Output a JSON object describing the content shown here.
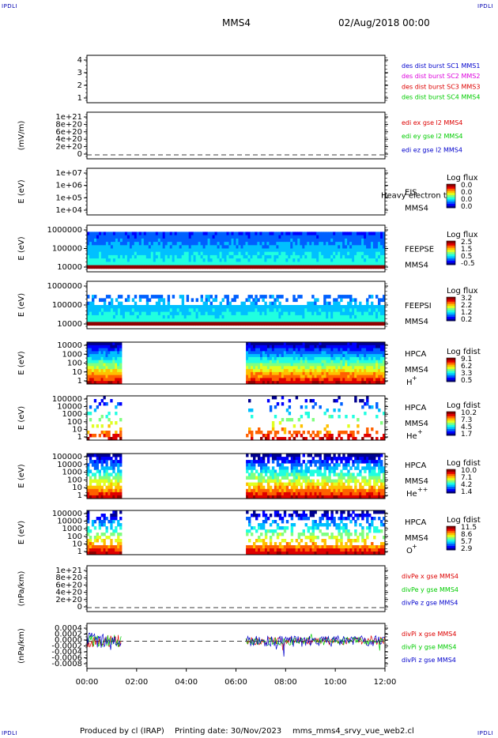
{
  "corners": {
    "tl": "IPDLI",
    "tr": "IPDLI",
    "bl": "IPDLI",
    "br": "IPDLI"
  },
  "header": {
    "spacecraft": "MMS4",
    "datetime": "02/Aug/2018 00:00"
  },
  "footer": {
    "produced_by": "Produced by cl (IRAP)",
    "printing_date": "Printing date: 30/Nov/2023",
    "file": "mms_mms4_srvy_vue_web2.cl"
  },
  "colors": {
    "red": "#dd0000",
    "green": "#00cc00",
    "blue": "#0000cc",
    "magenta": "#dd00dd"
  },
  "chart_data": [
    {
      "type": "line",
      "ylabel": "",
      "yticks": [
        "1",
        "2",
        "3",
        "4"
      ],
      "legend": [
        {
          "label": "des dist burst SC1 MMS1",
          "color": "#0000cc"
        },
        {
          "label": "des dist burst SC2 MMS2",
          "color": "#dd00dd"
        },
        {
          "label": "des dist burst SC3 MMS3",
          "color": "#dd0000"
        },
        {
          "label": "des dist burst SC4 MMS4",
          "color": "#00cc00"
        }
      ]
    },
    {
      "type": "line",
      "ylabel": "(mV/m)",
      "yticks": [
        "0",
        "2e+20",
        "4e+20",
        "6e+20",
        "8e+20",
        "1e+21"
      ],
      "legend": [
        {
          "label": "edi ex gse l2 MMS4",
          "color": "#dd0000"
        },
        {
          "label": "edi ey gse l2 MMS4",
          "color": "#00cc00"
        },
        {
          "label": "edi ez gse l2 MMS4",
          "color": "#0000cc"
        }
      ]
    },
    {
      "type": "heatmap",
      "ylabel": "E (eV)",
      "yticks": [
        "1e+04",
        "1e+05",
        "1e+06",
        "1e+07"
      ],
      "instrument": "EIS",
      "overlay": "Heavy electron tof",
      "probe": "MMS4",
      "colorbar": {
        "title": "Log flux",
        "ticks": [
          "0.0",
          "0.0",
          "0.0",
          "0.0"
        ]
      }
    },
    {
      "type": "heatmap",
      "ylabel": "E (eV)",
      "yticks": [
        "10000",
        "100000",
        "1000000"
      ],
      "instrument": "FEEPSE",
      "probe": "MMS4",
      "colorbar": {
        "title": "Log flux",
        "ticks": [
          "2.5",
          "1.5",
          "0.5",
          "-0.5"
        ]
      }
    },
    {
      "type": "heatmap",
      "ylabel": "E (eV)",
      "yticks": [
        "10000",
        "100000",
        "1000000"
      ],
      "instrument": "FEEPSI",
      "probe": "MMS4",
      "colorbar": {
        "title": "Log flux",
        "ticks": [
          "3.2",
          "2.2",
          "1.2",
          "0.2"
        ]
      }
    },
    {
      "type": "heatmap",
      "ylabel": "E (eV)",
      "yticks": [
        "1",
        "10",
        "100",
        "1000",
        "10000"
      ],
      "instrument": "HPCA",
      "probe": "MMS4",
      "species": "H",
      "charge": "+",
      "colorbar": {
        "title": "Log fdist",
        "ticks": [
          "9.1",
          "6.2",
          "3.3",
          "0.5"
        ]
      },
      "intervals_hours": [
        [
          0.0,
          1.4
        ],
        [
          6.4,
          12.0
        ]
      ]
    },
    {
      "type": "heatmap",
      "ylabel": "E (eV)",
      "yticks": [
        "1",
        "10",
        "100",
        "1000",
        "10000",
        "100000"
      ],
      "instrument": "HPCA",
      "probe": "MMS4",
      "species": "He",
      "charge": "+",
      "colorbar": {
        "title": "Log fdist",
        "ticks": [
          "10.2",
          "7.3",
          "4.5",
          "1.7"
        ]
      },
      "intervals_hours": [
        [
          0.0,
          1.4
        ],
        [
          6.4,
          12.0
        ]
      ]
    },
    {
      "type": "heatmap",
      "ylabel": "E (eV)",
      "yticks": [
        "1",
        "10",
        "100",
        "1000",
        "10000",
        "100000"
      ],
      "instrument": "HPCA",
      "probe": "MMS4",
      "species": "He",
      "charge": "++",
      "colorbar": {
        "title": "Log fdist",
        "ticks": [
          "10.0",
          "7.1",
          "4.2",
          "1.4"
        ]
      },
      "intervals_hours": [
        [
          0.0,
          1.4
        ],
        [
          6.4,
          12.0
        ]
      ]
    },
    {
      "type": "heatmap",
      "ylabel": "E (eV)",
      "yticks": [
        "1",
        "10",
        "100",
        "1000",
        "10000",
        "100000"
      ],
      "instrument": "HPCA",
      "probe": "MMS4",
      "species": "O",
      "charge": "+",
      "colorbar": {
        "title": "Log fdist",
        "ticks": [
          "11.5",
          "8.6",
          "5.7",
          "2.9"
        ]
      },
      "intervals_hours": [
        [
          0.0,
          1.4
        ],
        [
          6.4,
          12.0
        ]
      ]
    },
    {
      "type": "line",
      "ylabel": "(nPa/km)",
      "yticks": [
        "0",
        "2e+20",
        "4e+20",
        "6e+20",
        "8e+20",
        "1e+21"
      ],
      "legend": [
        {
          "label": "divPe x gse MMS4",
          "color": "#dd0000"
        },
        {
          "label": "divPe y gse MMS4",
          "color": "#00cc00"
        },
        {
          "label": "divPe z gse MMS4",
          "color": "#0000cc"
        }
      ]
    },
    {
      "type": "line",
      "ylabel": "(nPa/km)",
      "yticks": [
        "-0.0008",
        "-0.0006",
        "-0.0004",
        "-0.0002",
        "0.0000",
        "0.0002",
        "0.0004"
      ],
      "legend": [
        {
          "label": "divPi x gse MMS4",
          "color": "#dd0000"
        },
        {
          "label": "divPi y gse MMS4",
          "color": "#00cc00"
        },
        {
          "label": "divPi z gse MMS4",
          "color": "#0000cc"
        }
      ],
      "intervals_hours": [
        [
          0.0,
          1.4
        ],
        [
          6.4,
          12.0
        ]
      ]
    }
  ],
  "xaxis": {
    "ticks": [
      "00:00",
      "02:00",
      "04:00",
      "06:00",
      "08:00",
      "10:00",
      "12:00"
    ],
    "range_hours": [
      0,
      12
    ]
  }
}
